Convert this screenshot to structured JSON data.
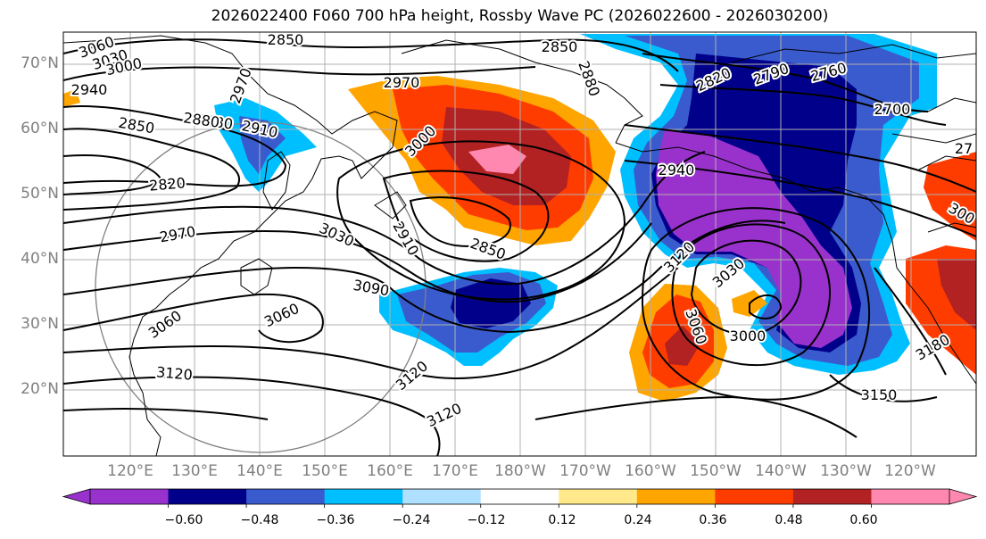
{
  "title": "2026022400 F060 700 hPa height, Rossby Wave PC (2026022600 - 2026030200)",
  "lat_labels": [
    "70°N",
    "60°N",
    "50°N",
    "40°N",
    "30°N",
    "20°N"
  ],
  "lon_labels": [
    "120°E",
    "130°E",
    "140°E",
    "150°E",
    "160°E",
    "170°E",
    "180°W",
    "170°W",
    "160°W",
    "150°W",
    "140°W",
    "130°W",
    "120°W"
  ],
  "contour_labels": [
    "3060",
    "3030",
    "3000",
    "2940",
    "2850",
    "2880",
    "2910",
    "2970",
    "2820",
    "2970",
    "3030",
    "2910",
    "2850",
    "3060",
    "3090",
    "3060",
    "3120",
    "3120",
    "3120",
    "2970",
    "2850",
    "2880",
    "2850",
    "2880",
    "3000",
    "2820",
    "2790",
    "2760",
    "2700",
    "2940",
    "3120",
    "3030",
    "3060",
    "3000",
    "3150",
    "3180",
    "27",
    "300"
  ],
  "colorbar": {
    "ticks": [
      "−0.60",
      "−0.48",
      "−0.36",
      "−0.24",
      "−0.12",
      "0.12",
      "0.24",
      "0.36",
      "0.48",
      "0.60"
    ],
    "colors": [
      "#9932cc",
      "#00008b",
      "#3a5bcd",
      "#00bfff",
      "#b0e0ff",
      "#ffffff",
      "#ffe98a",
      "#ffa500",
      "#ff3c00",
      "#b22222",
      "#ff88b0"
    ]
  },
  "colors": {
    "purple": "#9932cc",
    "navy": "#00008b",
    "blue": "#3a5bcd",
    "cyan": "#00bfff",
    "orange": "#ffa500",
    "redorange": "#ff3c00",
    "darkred": "#b22222",
    "pink": "#ff88b0",
    "grid": "#b0b0b0",
    "axis_text": "#808080"
  }
}
